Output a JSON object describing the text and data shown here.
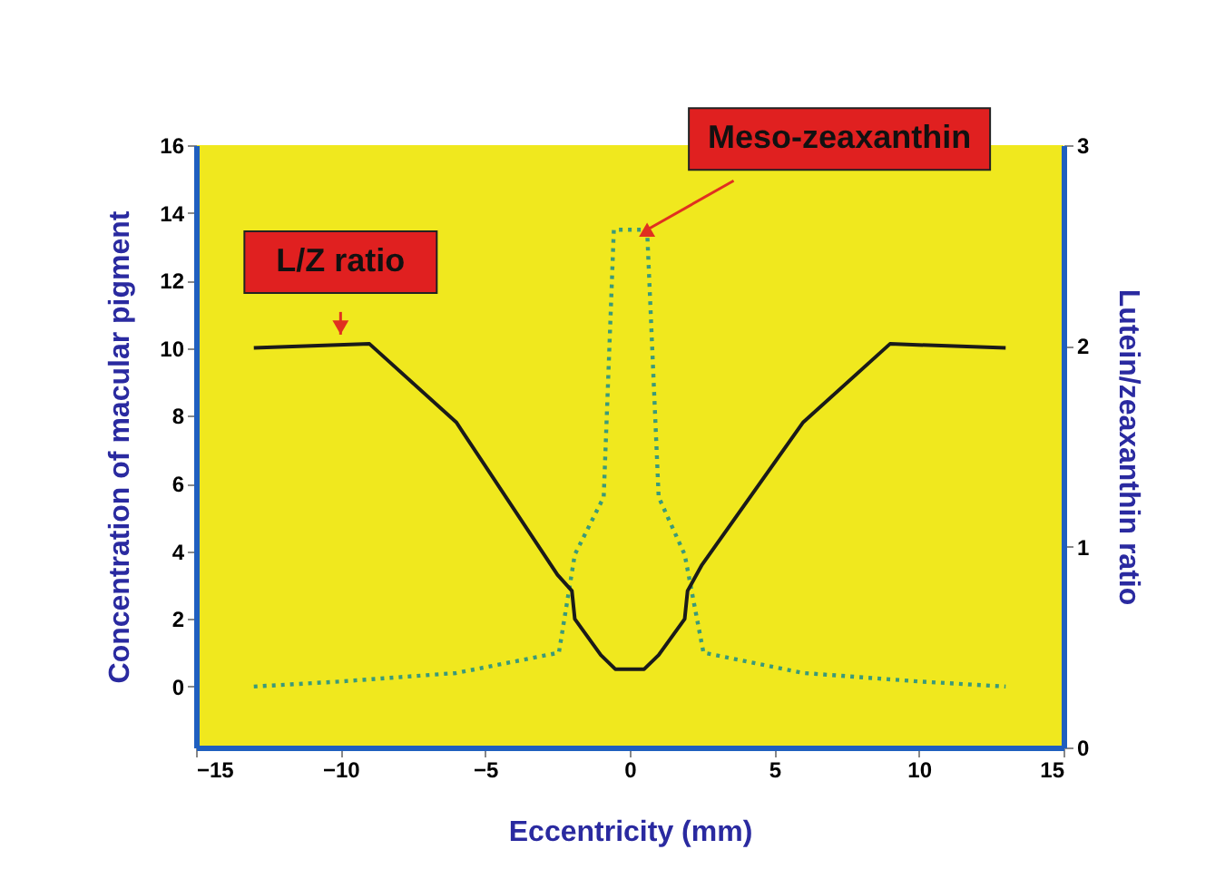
{
  "chart_data": {
    "type": "line",
    "xlabel": "Eccentricity (mm)",
    "ylabel": "Concentration of macular pigment",
    "y2label": "Lutein/zeaxanthin ratio",
    "xlim": [
      -15,
      15
    ],
    "xticks": [
      -15,
      -10,
      -5,
      0,
      5,
      10,
      15
    ],
    "ylim": [
      -1.8,
      16
    ],
    "yticks": [
      0,
      2,
      4,
      6,
      8,
      10,
      12,
      14,
      16
    ],
    "y2lim": [
      0,
      3
    ],
    "y2ticks": [
      0,
      1,
      2,
      3
    ],
    "grid": false,
    "marker": "none",
    "series": [
      {
        "color": "#1a1a1a",
        "axis": "y2",
        "line_style": "solid",
        "x": [
          -13,
          -9,
          -6,
          -2.5,
          -2,
          -1.9,
          -1,
          -0.5,
          0.5,
          1,
          1.9,
          2,
          2.5,
          6,
          9,
          13
        ],
        "values": [
          1.99,
          2.01,
          1.62,
          0.86,
          0.78,
          0.64,
          0.46,
          0.39,
          0.39,
          0.46,
          0.64,
          0.78,
          0.91,
          1.62,
          2.01,
          1.99
        ]
      },
      {
        "color": "#3a9a7a",
        "axis": "y",
        "line_style": "dotted",
        "x": [
          -13,
          -10,
          -6,
          -2.45,
          -1.9,
          -0.9,
          -0.55,
          0.6,
          1,
          1.9,
          2.55,
          6,
          10,
          13
        ],
        "values": [
          0,
          0.15,
          0.4,
          1.0,
          3.9,
          5.6,
          13.5,
          13.5,
          5.6,
          3.9,
          1.0,
          0.4,
          0.15,
          0
        ]
      }
    ],
    "annotations": [
      {
        "text": "L/Z ratio",
        "x": -10,
        "y": 10.4
      },
      {
        "text": "Meso-zeaxanthin",
        "x": 0.6,
        "y": 13.5
      }
    ]
  }
}
